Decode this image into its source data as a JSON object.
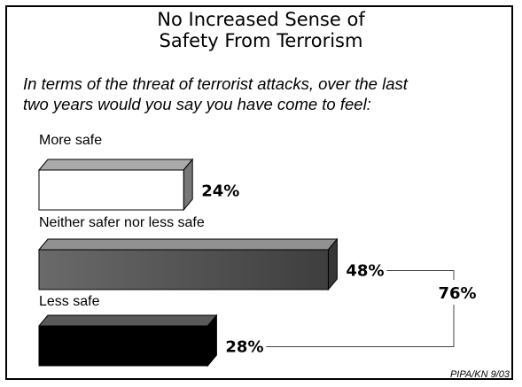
{
  "header": {
    "title_line1": "No Increased Sense of",
    "title_line2": "Safety From Terrorism"
  },
  "question": {
    "line1": "In terms of the threat of terrorist attacks, over the last",
    "line2": "two years would you say you have come to feel:"
  },
  "source": "PIPA/KN 9/03",
  "chart_data": {
    "type": "bar",
    "orientation": "horizontal",
    "categories": [
      "More safe",
      "Neither safer nor less safe",
      "Less safe"
    ],
    "values": [
      24,
      48,
      28
    ],
    "value_labels": [
      "24%",
      "48%",
      "28%"
    ],
    "unit": "%",
    "bar_colors": [
      "#ffffff",
      "#555555",
      "#000000"
    ],
    "xlim": [
      0,
      100
    ],
    "grid": false,
    "legend": "none",
    "bracket": {
      "groups": [
        "Neither safer nor less safe",
        "Less safe"
      ],
      "total": 76,
      "label": "76%"
    }
  }
}
